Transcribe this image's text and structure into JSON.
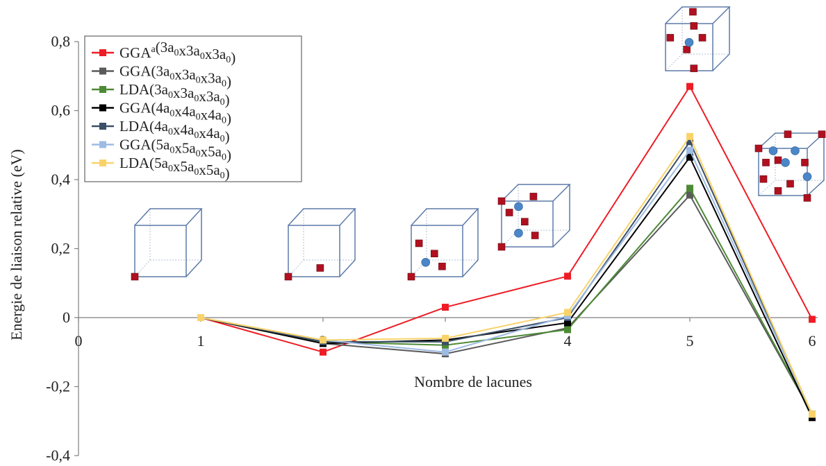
{
  "chart_data": {
    "type": "line",
    "title": "",
    "xlabel": "Nombre de lacunes",
    "ylabel": "Energie de liaison relative (eV)",
    "xlim": [
      0,
      6
    ],
    "ylim": [
      -0.4,
      0.8
    ],
    "x_ticks": [
      "0",
      "1",
      "2",
      "3",
      "4",
      "5",
      "6"
    ],
    "y_ticks": [
      "-0,4",
      "-0,2",
      "0",
      "0,2",
      "0,4",
      "0,6",
      "0,8"
    ],
    "legend_position": "top-left",
    "grid": false,
    "x": [
      1,
      2,
      3,
      4,
      5,
      6
    ],
    "series": [
      {
        "label": "GGA",
        "sup": "a",
        "cell": "(3a0x3a0x3a0)",
        "color": "#ee1c25",
        "values": [
          0,
          -0.1,
          0.03,
          0.12,
          0.67,
          -0.005
        ]
      },
      {
        "label": "GGA",
        "sup": "",
        "cell": "(3a0x3a0x3a0)",
        "color": "#5a5a5a",
        "values": [
          0,
          -0.075,
          -0.105,
          -0.03,
          0.355,
          -0.28
        ]
      },
      {
        "label": "LDA",
        "sup": "",
        "cell": "(3a0x3a0x3a0)",
        "color": "#4d8a35",
        "values": [
          0,
          -0.07,
          -0.08,
          -0.035,
          0.375,
          -0.28
        ]
      },
      {
        "label": "GGA",
        "sup": "",
        "cell": "(4a0x4a0x4a0)",
        "color": "#000000",
        "values": [
          0,
          -0.075,
          -0.065,
          -0.015,
          0.465,
          -0.29
        ]
      },
      {
        "label": "LDA",
        "sup": "",
        "cell": "(4a0x4a0x4a0)",
        "color": "#3b4f66",
        "values": [
          0,
          -0.07,
          -0.07,
          0.0,
          0.51,
          -0.28
        ]
      },
      {
        "label": "GGA",
        "sup": "",
        "cell": "(5a0x5a0x5a0)",
        "color": "#9dbbe3",
        "values": [
          0,
          -0.065,
          -0.1,
          0.005,
          0.485,
          -0.28
        ]
      },
      {
        "label": "LDA",
        "sup": "",
        "cell": "(5a0x5a0x5a0)",
        "color": "#f9d36a",
        "values": [
          0,
          -0.065,
          -0.06,
          0.015,
          0.525,
          -0.28
        ]
      }
    ],
    "cube_insets": [
      {
        "vacancies": 1,
        "solutes": 0
      },
      {
        "vacancies": 2,
        "solutes": 0
      },
      {
        "vacancies": 3,
        "solutes": 1
      },
      {
        "vacancies": 4,
        "solutes": 2
      },
      {
        "vacancies": 5,
        "solutes": 1
      },
      {
        "vacancies": 6,
        "solutes": 5
      }
    ]
  }
}
